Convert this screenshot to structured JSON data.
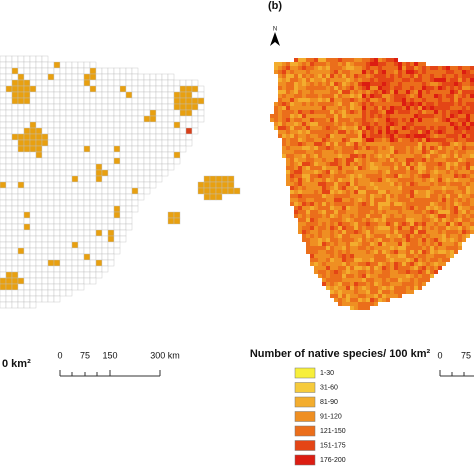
{
  "panel_label": "(b)",
  "north": "N",
  "left_caption": "0 km²",
  "scale_bar": {
    "ticks": [
      "0",
      "75",
      "150",
      "300 km"
    ]
  },
  "right_scale": {
    "ticks": [
      "0",
      "75"
    ]
  },
  "legend": {
    "title": "Number of native species/ 100 km²",
    "items": [
      {
        "label": "1-30",
        "color": "#f7ef3a"
      },
      {
        "label": "31-60",
        "color": "#f6cb3c"
      },
      {
        "label": "81-90",
        "color": "#f3ad2e"
      },
      {
        "label": "91-120",
        "color": "#ef8f22"
      },
      {
        "label": "121-150",
        "color": "#eb6e1b"
      },
      {
        "label": "151-175",
        "color": "#e44516"
      },
      {
        "label": "176-200",
        "color": "#dc1d12"
      }
    ]
  }
}
